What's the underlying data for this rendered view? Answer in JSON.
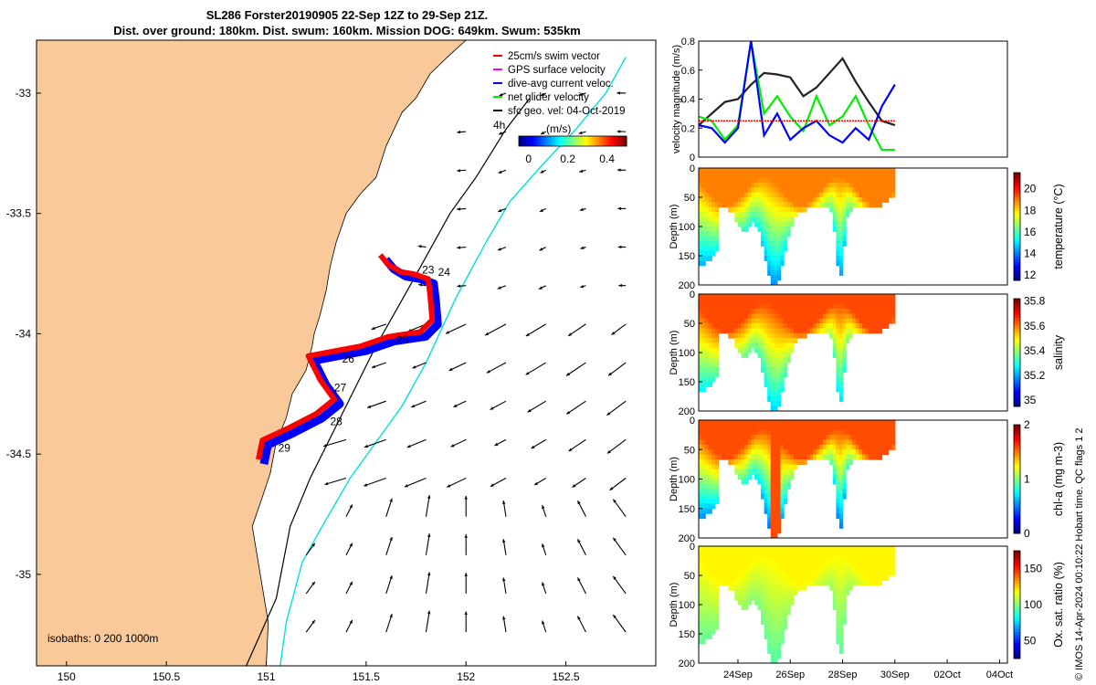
{
  "title": {
    "line1": "SL286 Forster20190905 22-Sep 12Z to 29-Sep 21Z.",
    "line2": "Dist. over ground: 180km. Dist. swum: 160km. Mission DOG: 649km. Swum: 535km"
  },
  "credit": "© IMOS 14-Apr-2024 00:10:22 Hobart time. QC flags 1  2",
  "colors": {
    "land": "#f9c99a",
    "track_red": "#ff0000",
    "track_blue": "#0000ff",
    "gps_magenta": "#ff00ff",
    "net_green": "#00ee00",
    "isobath_200": "#000000",
    "isobath_1000": "#00e0e0",
    "speed_black": "#222222"
  },
  "chart_data": [
    {
      "type": "scatter",
      "name": "map",
      "xlim": [
        149.85,
        152.95
      ],
      "ylim": [
        -35.38,
        -32.78
      ],
      "x_ticks": [
        "150",
        "150.5",
        "151",
        "151.5",
        "152",
        "152.5"
      ],
      "x_tick_values": [
        150,
        150.5,
        151,
        151.5,
        152,
        152.5
      ],
      "y_ticks": [
        "-33",
        "-33.5",
        "-34",
        "-34.5",
        "-35"
      ],
      "y_tick_values": [
        -33,
        -33.5,
        -34,
        -34.5,
        -35
      ],
      "legend": [
        {
          "label": "25cm/s swim vector",
          "color": "#ff0000"
        },
        {
          "label": "GPS surface velocity",
          "color": "#ff00ff"
        },
        {
          "label": "dive-avg current veloc.",
          "color": "#0000ff"
        },
        {
          "label": "net glider velocity",
          "color": "#00ee00"
        },
        {
          "label": "sfc geo. vel: 04-Oct-2019",
          "color": "#000000"
        }
      ],
      "legend_position": "top-right",
      "scale_label": "4h",
      "colorbar_title": "(m/s)",
      "colorbar_ticks": [
        "0",
        "0.2",
        "0.4"
      ],
      "colorbar_tick_values": [
        0,
        0.2,
        0.4
      ],
      "colorbar_range": [
        -0.05,
        0.5
      ],
      "isobath_label": "isobaths: 0   200  1000m",
      "coastline": [
        [
          151.0,
          -35.38
        ],
        [
          151.01,
          -35.2
        ],
        [
          150.98,
          -35.05
        ],
        [
          150.95,
          -34.9
        ],
        [
          150.93,
          -34.8
        ],
        [
          150.98,
          -34.68
        ],
        [
          151.02,
          -34.58
        ],
        [
          151.05,
          -34.45
        ],
        [
          151.1,
          -34.35
        ],
        [
          151.13,
          -34.25
        ],
        [
          151.2,
          -34.15
        ],
        [
          151.23,
          -34.05
        ],
        [
          151.24,
          -34.0
        ],
        [
          151.27,
          -33.92
        ],
        [
          151.3,
          -33.82
        ],
        [
          151.32,
          -33.72
        ],
        [
          151.35,
          -33.62
        ],
        [
          151.4,
          -33.5
        ],
        [
          151.47,
          -33.42
        ],
        [
          151.55,
          -33.35
        ],
        [
          151.6,
          -33.22
        ],
        [
          151.68,
          -33.08
        ],
        [
          151.75,
          -33.02
        ],
        [
          151.82,
          -32.92
        ],
        [
          151.92,
          -32.84
        ],
        [
          152.0,
          -32.78
        ]
      ],
      "isobath_200": [
        [
          150.9,
          -35.38
        ],
        [
          151.05,
          -35.1
        ],
        [
          151.12,
          -34.8
        ],
        [
          151.22,
          -34.6
        ],
        [
          151.4,
          -34.3
        ],
        [
          151.55,
          -34.05
        ],
        [
          151.72,
          -33.8
        ],
        [
          151.92,
          -33.5
        ],
        [
          152.05,
          -33.35
        ],
        [
          152.2,
          -33.15
        ],
        [
          152.32,
          -33.02
        ]
      ],
      "isobath_1000": [
        [
          151.07,
          -35.38
        ],
        [
          151.1,
          -35.2
        ],
        [
          151.18,
          -34.95
        ],
        [
          151.28,
          -34.8
        ],
        [
          151.42,
          -34.6
        ],
        [
          151.55,
          -34.45
        ],
        [
          151.68,
          -34.3
        ],
        [
          151.8,
          -34.12
        ],
        [
          151.95,
          -33.85
        ],
        [
          152.1,
          -33.62
        ],
        [
          152.22,
          -33.45
        ],
        [
          152.38,
          -33.3
        ],
        [
          152.55,
          -33.15
        ],
        [
          152.7,
          -33.0
        ],
        [
          152.8,
          -32.85
        ]
      ],
      "track": [
        [
          151.58,
          -33.68
        ],
        [
          151.62,
          -33.72
        ],
        [
          151.68,
          -33.75
        ],
        [
          151.75,
          -33.76
        ],
        [
          151.82,
          -33.78
        ],
        [
          151.83,
          -33.85
        ],
        [
          151.84,
          -33.95
        ],
        [
          151.78,
          -34.0
        ],
        [
          151.62,
          -34.02
        ],
        [
          151.48,
          -34.06
        ],
        [
          151.35,
          -34.08
        ],
        [
          151.22,
          -34.1
        ],
        [
          151.28,
          -34.2
        ],
        [
          151.35,
          -34.28
        ],
        [
          151.26,
          -34.34
        ],
        [
          151.12,
          -34.4
        ],
        [
          150.99,
          -34.45
        ],
        [
          150.97,
          -34.53
        ]
      ],
      "day_labels": [
        {
          "text": "23",
          "x": 151.78,
          "y": -33.75
        },
        {
          "text": "24",
          "x": 151.86,
          "y": -33.76
        },
        {
          "text": "25",
          "x": 151.65,
          "y": -34.04
        },
        {
          "text": "26",
          "x": 151.38,
          "y": -34.12
        },
        {
          "text": "27",
          "x": 151.34,
          "y": -34.24
        },
        {
          "text": "28",
          "x": 151.32,
          "y": -34.38
        },
        {
          "text": "29",
          "x": 151.06,
          "y": -34.49
        }
      ]
    },
    {
      "type": "line",
      "name": "velocity",
      "ylabel": "velocity magnitude (m/s)",
      "ylim": [
        0,
        0.8
      ],
      "y_ticks": [
        "0",
        "0.2",
        "0.4",
        "0.6",
        "0.8"
      ],
      "y_tick_values": [
        0,
        0.2,
        0.4,
        0.6,
        0.8
      ],
      "xlim": [
        22.5,
        34.3
      ],
      "x": [
        22.5,
        23.0,
        23.5,
        24.0,
        24.5,
        25.0,
        25.5,
        26.0,
        26.5,
        27.0,
        27.5,
        28.0,
        28.5,
        29.0,
        29.5,
        30.0
      ],
      "series": [
        {
          "color": "#222222",
          "values": [
            0.22,
            0.3,
            0.38,
            0.4,
            0.5,
            0.58,
            0.57,
            0.55,
            0.42,
            0.48,
            0.58,
            0.68,
            0.52,
            0.38,
            0.25,
            0.22
          ]
        },
        {
          "color": "#00ee00",
          "values": [
            0.28,
            0.25,
            0.12,
            0.22,
            0.8,
            0.3,
            0.42,
            0.28,
            0.18,
            0.42,
            0.22,
            0.28,
            0.42,
            0.22,
            0.05,
            0.05
          ]
        },
        {
          "color": "#0000ff",
          "values": [
            0.22,
            0.2,
            0.1,
            0.2,
            0.8,
            0.15,
            0.3,
            0.12,
            0.2,
            0.25,
            0.15,
            0.1,
            0.2,
            0.12,
            0.35,
            0.5
          ]
        },
        {
          "color": "#ff0000",
          "values": [
            0.25,
            0.25,
            0.25,
            0.25,
            0.25,
            0.25,
            0.25,
            0.25,
            0.25,
            0.25,
            0.25,
            0.25,
            0.25,
            0.25,
            0.25,
            0.25
          ]
        }
      ]
    },
    {
      "type": "heatmap",
      "name": "temperature",
      "ylabel": "Depth (m)",
      "colorbar_label": "temperature (°C)",
      "colorbar_range": [
        11.5,
        21.5
      ],
      "colorbar_ticks": [
        "12",
        "14",
        "16",
        "18",
        "20"
      ],
      "colorbar_tick_values": [
        12,
        14,
        16,
        18,
        20
      ],
      "y_ticks": [
        "0",
        "50",
        "100",
        "150",
        "200"
      ],
      "y_tick_values": [
        0,
        50,
        100,
        150,
        200
      ],
      "surface_value": 19.0,
      "deep_value": 12.5
    },
    {
      "type": "heatmap",
      "name": "salinity",
      "ylabel": "Depth (m)",
      "colorbar_label": "salinity",
      "colorbar_range": [
        34.95,
        35.82
      ],
      "colorbar_ticks": [
        "35",
        "35.2",
        "35.4",
        "35.6",
        "35.8"
      ],
      "colorbar_tick_values": [
        35.0,
        35.2,
        35.4,
        35.6,
        35.8
      ],
      "y_ticks": [
        "0",
        "50",
        "100",
        "150",
        "200"
      ],
      "y_tick_values": [
        0,
        50,
        100,
        150,
        200
      ],
      "surface_value": 35.65,
      "deep_value": 35.1
    },
    {
      "type": "heatmap",
      "name": "chl-a",
      "ylabel": "Depth (m)",
      "colorbar_label": "chl-a (mg m-3)",
      "colorbar_range": [
        0,
        2
      ],
      "colorbar_ticks": [
        "0",
        "1",
        "2"
      ],
      "colorbar_tick_values": [
        0,
        1,
        2
      ],
      "y_ticks": [
        "0",
        "50",
        "100",
        "150",
        "200"
      ],
      "y_tick_values": [
        0,
        50,
        100,
        150,
        200
      ],
      "surface_value": 1.6,
      "deep_value": 0.05
    },
    {
      "type": "heatmap",
      "name": "oxygen",
      "ylabel": "Depth (m)",
      "colorbar_label": "Ox. sat. ratio (%)",
      "colorbar_range": [
        25,
        175
      ],
      "colorbar_ticks": [
        "50",
        "100",
        "150"
      ],
      "colorbar_tick_values": [
        50,
        100,
        150
      ],
      "y_ticks": [
        "0",
        "50",
        "100",
        "150",
        "200"
      ],
      "y_tick_values": [
        0,
        50,
        100,
        150,
        200
      ],
      "surface_value": 120,
      "deep_value": 85
    },
    {
      "type": "line",
      "name": "time-axis",
      "x_ticks": [
        "24Sep",
        "26Sep",
        "28Sep",
        "30Sep",
        "02Oct",
        "04Oct"
      ],
      "x_tick_values": [
        24,
        26,
        28,
        30,
        32,
        34
      ]
    }
  ]
}
